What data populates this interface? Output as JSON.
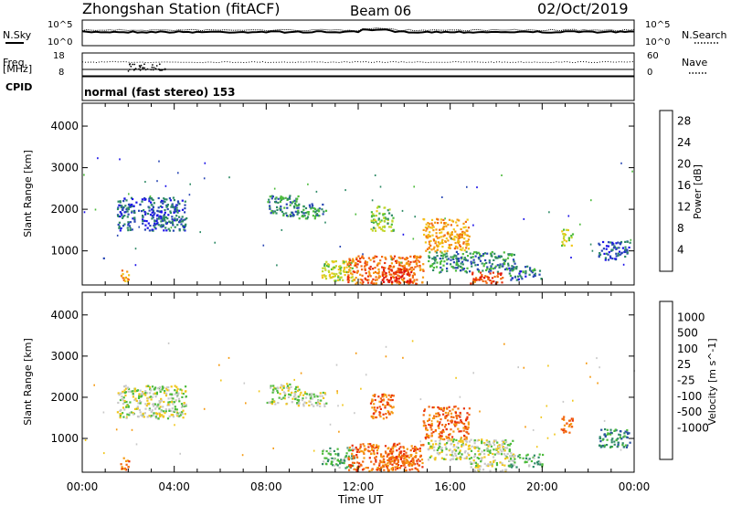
{
  "header": {
    "station": "Zhongshan Station (fitACF)",
    "beam": "Beam 06",
    "date": "02/Oct/2019"
  },
  "top_panel": {
    "left_label": "N.Sky",
    "left_ticks": [
      "10^5",
      "10^0"
    ],
    "right_label": "N.Search",
    "right_ticks": [
      "10^5",
      "10^0"
    ]
  },
  "freq_panel": {
    "left_label_1": "Freq.",
    "left_label_2": "[MHz]",
    "left_ticks": [
      "18",
      "8"
    ],
    "right_label": "Nave",
    "right_ticks": [
      "60",
      "0"
    ]
  },
  "cpid": {
    "label": "CPID",
    "text": "normal (fast stereo) 153"
  },
  "chart_data": [
    {
      "type": "heatmap",
      "title": "",
      "ylabel": "Slant Range [km]",
      "xlabel": "Time UT",
      "x_ticks": [
        "00:00",
        "04:00",
        "08:00",
        "12:00",
        "16:00",
        "20:00",
        "00:00"
      ],
      "y_ticks": [
        "1000",
        "2000",
        "3000",
        "4000"
      ],
      "ylim": [
        180,
        4550
      ],
      "colorbar": {
        "label": "Power [dB]",
        "ticks": [
          "4",
          "8",
          "12",
          "16",
          "20",
          "24",
          "28"
        ],
        "range": [
          0,
          30
        ],
        "colors": [
          "#1a10e8",
          "#2846b4",
          "#2e8a66",
          "#4dbb3c",
          "#c2d62a",
          "#f0c61a",
          "#f59a10",
          "#f2670f",
          "#e8300c",
          "#dd0d0d"
        ]
      },
      "regions": [
        {
          "t": [
            0.9,
            1.0
          ],
          "r": [
            780,
            930
          ],
          "v": 6
        },
        {
          "t": [
            1.5,
            4.5
          ],
          "r": [
            1500,
            2300
          ],
          "v": 5
        },
        {
          "t": [
            1.6,
            2.0
          ],
          "r": [
            260,
            550
          ],
          "v": 20
        },
        {
          "t": [
            8.0,
            9.4
          ],
          "r": [
            1850,
            2350
          ],
          "v": 8
        },
        {
          "t": [
            9.3,
            10.6
          ],
          "r": [
            1800,
            2150
          ],
          "v": 8
        },
        {
          "t": [
            10.4,
            11.8
          ],
          "r": [
            300,
            800
          ],
          "v": 14
        },
        {
          "t": [
            11.5,
            14.8
          ],
          "r": [
            220,
            900
          ],
          "v": 22
        },
        {
          "t": [
            13.0,
            14.4
          ],
          "r": [
            250,
            600
          ],
          "v": 27
        },
        {
          "t": [
            12.5,
            13.5
          ],
          "r": [
            1500,
            2100
          ],
          "v": 12
        },
        {
          "t": [
            14.8,
            16.8
          ],
          "r": [
            1000,
            1800
          ],
          "v": 19
        },
        {
          "t": [
            15.0,
            18.8
          ],
          "r": [
            500,
            1000
          ],
          "v": 8
        },
        {
          "t": [
            16.8,
            18.4
          ],
          "r": [
            220,
            500
          ],
          "v": 24
        },
        {
          "t": [
            18.5,
            20.0
          ],
          "r": [
            320,
            650
          ],
          "v": 6
        },
        {
          "t": [
            20.8,
            21.3
          ],
          "r": [
            1150,
            1550
          ],
          "v": 14
        },
        {
          "t": [
            22.4,
            23.8
          ],
          "r": [
            800,
            1250
          ],
          "v": 5
        }
      ]
    },
    {
      "type": "heatmap",
      "title": "",
      "ylabel": "Slant Range [km]",
      "xlabel": "Time UT",
      "x_ticks": [
        "00:00",
        "04:00",
        "08:00",
        "12:00",
        "16:00",
        "20:00",
        "00:00"
      ],
      "y_ticks": [
        "1000",
        "2000",
        "3000",
        "4000"
      ],
      "ylim": [
        180,
        4550
      ],
      "colorbar": {
        "label": "Velocity [m s^-1]",
        "ticks": [
          "1000",
          "500",
          "100",
          "25",
          "-25",
          "-100",
          "-500",
          "-1000"
        ],
        "colors": [
          "#1414c8",
          "#2850a0",
          "#2e8a66",
          "#4dbb3c",
          "#c8c8c8",
          "#f0c61a",
          "#f59a10",
          "#f2670f",
          "#e8300c",
          "#dd0d0d"
        ]
      },
      "regions": [
        {
          "t": [
            0.9,
            1.0
          ],
          "r": [
            780,
            930
          ],
          "v": 4
        },
        {
          "t": [
            1.5,
            4.5
          ],
          "r": [
            1500,
            2300
          ],
          "v": 4
        },
        {
          "t": [
            1.6,
            2.0
          ],
          "r": [
            260,
            550
          ],
          "v": 7
        },
        {
          "t": [
            8.0,
            9.4
          ],
          "r": [
            1850,
            2350
          ],
          "v": 4
        },
        {
          "t": [
            9.3,
            10.6
          ],
          "r": [
            1800,
            2150
          ],
          "v": 4
        },
        {
          "t": [
            10.4,
            11.8
          ],
          "r": [
            300,
            800
          ],
          "v": 3
        },
        {
          "t": [
            11.5,
            14.8
          ],
          "r": [
            220,
            900
          ],
          "v": 7
        },
        {
          "t": [
            13.0,
            14.4
          ],
          "r": [
            250,
            600
          ],
          "v": 7
        },
        {
          "t": [
            12.5,
            13.5
          ],
          "r": [
            1500,
            2100
          ],
          "v": 7
        },
        {
          "t": [
            14.8,
            16.8
          ],
          "r": [
            1000,
            1800
          ],
          "v": 7
        },
        {
          "t": [
            15.0,
            18.8
          ],
          "r": [
            500,
            1000
          ],
          "v": 4
        },
        {
          "t": [
            16.8,
            18.4
          ],
          "r": [
            220,
            500
          ],
          "v": 4
        },
        {
          "t": [
            18.5,
            20.0
          ],
          "r": [
            320,
            650
          ],
          "v": 3
        },
        {
          "t": [
            20.8,
            21.3
          ],
          "r": [
            1150,
            1550
          ],
          "v": 7
        },
        {
          "t": [
            22.4,
            23.8
          ],
          "r": [
            800,
            1250
          ],
          "v": 2
        }
      ]
    }
  ]
}
